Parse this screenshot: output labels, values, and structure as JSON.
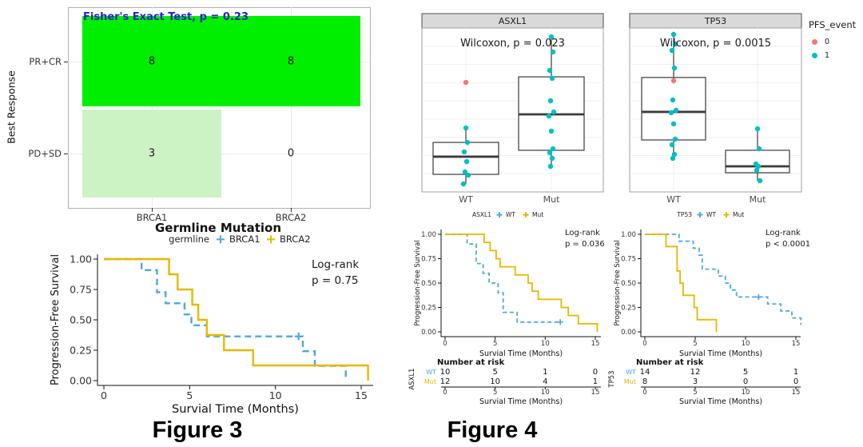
{
  "figure3_caption": "Figure 3",
  "figure4_caption": "Figure 4",
  "pfs_legend": {
    "title": "PFS_event",
    "items": [
      {
        "label": "0",
        "color": "#F8766D"
      },
      {
        "label": "1",
        "color": "#00BFC4"
      }
    ]
  },
  "chart_data": [
    {
      "id": "mosaic",
      "type": "heatmap",
      "title": "Fisher's Exact Test, p = 0.23",
      "title_color": "#2222CC",
      "xlabel": "Germline Mutation",
      "ylabel": "Best Response",
      "x_categories": [
        "BRCA1",
        "BRCA2"
      ],
      "y_categories": [
        "PR+CR",
        "PD+SD"
      ],
      "values": [
        [
          8,
          8
        ],
        [
          3,
          0
        ]
      ],
      "cell_colors": [
        [
          "#00EE00",
          "#00EE00"
        ],
        [
          "#CBF3C3",
          "#FFFFFF"
        ]
      ]
    },
    {
      "id": "km_germline",
      "type": "line",
      "subtype": "kaplan-meier",
      "legend_title": "germline",
      "annotation": [
        "Log-rank",
        "p = 0.75"
      ],
      "xlabel": "Survial Time (Months)",
      "ylabel": "Progression-Free Survival",
      "xticks": [
        0,
        5,
        10,
        15
      ],
      "ytick_labels": [
        "0.00",
        "0.25",
        "0.50",
        "0.75",
        "1.00"
      ],
      "xlim": [
        0,
        15.8
      ],
      "ylim": [
        0,
        1
      ],
      "series": [
        {
          "name": "BRCA1",
          "color": "#4FA7DC",
          "dashed": true,
          "steps": [
            [
              2.2,
              0.909
            ],
            [
              3.1,
              0.727
            ],
            [
              3.6,
              0.636
            ],
            [
              4.7,
              0.545
            ],
            [
              5.1,
              0.455
            ],
            [
              6.0,
              0.364
            ],
            [
              11.6,
              0.242
            ],
            [
              12.3,
              0.121
            ],
            [
              14.1,
              0
            ]
          ],
          "censors": [
            [
              11.35,
              0.364
            ]
          ]
        },
        {
          "name": "BRCA2",
          "color": "#E7B800",
          "dashed": false,
          "steps": [
            [
              3.8,
              0.875
            ],
            [
              4.3,
              0.75
            ],
            [
              5.15,
              0.625
            ],
            [
              5.5,
              0.5
            ],
            [
              6.0,
              0.375
            ],
            [
              7.0,
              0.25
            ],
            [
              8.7,
              0.125
            ],
            [
              15.4,
              0
            ]
          ],
          "censors": []
        }
      ]
    },
    {
      "id": "box_asxl1",
      "type": "boxplot",
      "panel_title": "ASXL1",
      "annotation": "Wilcoxon, p = 0.023",
      "categories": [
        "WT",
        "Mut"
      ],
      "ylim": [
        0,
        100
      ],
      "boxes": [
        {
          "category": "WT",
          "whisker_low": 4.9,
          "q1": 10.7,
          "median": 21.5,
          "q3": 30.2,
          "whisker_high": 39
        },
        {
          "category": "Mut",
          "whisker_low": 15.6,
          "q1": 25.4,
          "median": 47.3,
          "q3": 70.2,
          "whisker_high": 94.6
        }
      ],
      "points": [
        {
          "category": "WT",
          "event": "0",
          "values": [
            66.8
          ]
        },
        {
          "category": "WT",
          "event": "1",
          "values": [
            39,
            30.2,
            24.4,
            18.5,
            12.2,
            10.2,
            4.9
          ]
        },
        {
          "category": "Mut",
          "event": "1",
          "values": [
            94.6,
            85.4,
            74.1,
            69.3,
            55.6,
            48.8,
            46.3,
            37.1,
            26.3,
            23.9,
            20.5,
            15.6
          ]
        }
      ]
    },
    {
      "id": "box_tp53",
      "type": "boxplot",
      "panel_title": "TP53",
      "annotation": "Wilcoxon, p = 0.0015",
      "categories": [
        "WT",
        "Mut"
      ],
      "ylim": [
        0,
        100
      ],
      "boxes": [
        {
          "category": "WT",
          "whisker_low": 20.5,
          "q1": 31.7,
          "median": 48.8,
          "q3": 69.8,
          "whisker_high": 96.1
        },
        {
          "category": "Mut",
          "whisker_low": 6.8,
          "q1": 11.7,
          "median": 15.6,
          "q3": 25.4,
          "whisker_high": 38.5
        }
      ],
      "points": [
        {
          "category": "WT",
          "event": "0",
          "values": [
            67.8
          ]
        },
        {
          "category": "WT",
          "event": "1",
          "values": [
            96.1,
            90.2,
            86.3,
            75.6,
            56.1,
            49.8,
            48.3,
            41.5,
            32.2,
            28.8,
            22.9,
            20.5
          ]
        },
        {
          "category": "Mut",
          "event": "1",
          "values": [
            38.5,
            26.3,
            17.1,
            15.6,
            13.2,
            6.8
          ]
        }
      ]
    },
    {
      "id": "km_asxl1",
      "type": "line",
      "subtype": "kaplan-meier",
      "legend_title": "ASXL1",
      "annotation": [
        "Log-rank",
        "p = 0.036"
      ],
      "xlabel": "Survial Time (Months)",
      "ylabel": "Progression-Free Survival",
      "xticks": [
        0,
        5,
        10,
        15
      ],
      "ytick_labels": [
        "0.00",
        "0.25",
        "0.50",
        "0.75",
        "1.00"
      ],
      "xlim": [
        0,
        15.8
      ],
      "ylim": [
        0,
        1
      ],
      "series": [
        {
          "name": "WT",
          "color": "#4FA7DC",
          "dashed": true,
          "steps": [
            [
              2.2,
              0.9
            ],
            [
              3.1,
              0.7
            ],
            [
              3.8,
              0.6
            ],
            [
              4.4,
              0.5
            ],
            [
              5.3,
              0.4
            ],
            [
              5.8,
              0.2
            ],
            [
              7.2,
              0.1
            ],
            [
              11.6,
              0.1
            ]
          ],
          "censors": [
            [
              11.5,
              0.1
            ]
          ]
        },
        {
          "name": "Mut",
          "color": "#E7B800",
          "dashed": false,
          "steps": [
            [
              3.9,
              0.917
            ],
            [
              4.5,
              0.833
            ],
            [
              5.1,
              0.75
            ],
            [
              5.5,
              0.667
            ],
            [
              7.0,
              0.583
            ],
            [
              8.3,
              0.5
            ],
            [
              8.7,
              0.417
            ],
            [
              9.3,
              0.333
            ],
            [
              11.6,
              0.25
            ],
            [
              12.3,
              0.167
            ],
            [
              13.3,
              0.083
            ],
            [
              15.2,
              0
            ]
          ],
          "censors": []
        }
      ],
      "risk_table": {
        "title": "Number at risk",
        "group_label": "ASXL1",
        "xlabel": "Survial Time (Months)",
        "xticks": [
          0,
          5,
          10,
          15
        ],
        "rows": [
          {
            "name": "WT",
            "color": "#4FA7DC",
            "values": [
              "10",
              "5",
              "1",
              "0"
            ]
          },
          {
            "name": "Mut",
            "color": "#E7B800",
            "values": [
              "12",
              "10",
              "4",
              "1"
            ]
          }
        ]
      }
    },
    {
      "id": "km_tp53",
      "type": "line",
      "subtype": "kaplan-meier",
      "legend_title": "TP53",
      "annotation": [
        "Log-rank",
        "p < 0.0001"
      ],
      "xlabel": "Survial Time (Months)",
      "ylabel": "Progression-Free Survival",
      "xticks": [
        0,
        5,
        10,
        15
      ],
      "ytick_labels": [
        "0.00",
        "0.25",
        "0.50",
        "0.75",
        "1.00"
      ],
      "xlim": [
        0,
        15.8
      ],
      "ylim": [
        0,
        1
      ],
      "series": [
        {
          "name": "WT",
          "color": "#4FA7DC",
          "dashed": true,
          "steps": [
            [
              3.4,
              0.929
            ],
            [
              4.8,
              0.857
            ],
            [
              5.4,
              0.786
            ],
            [
              5.7,
              0.643
            ],
            [
              7.3,
              0.571
            ],
            [
              8.0,
              0.5
            ],
            [
              8.5,
              0.429
            ],
            [
              9.1,
              0.357
            ],
            [
              12.2,
              0.286
            ],
            [
              13.5,
              0.214
            ],
            [
              14.6,
              0.143
            ],
            [
              15.5,
              0.071
            ]
          ],
          "censors": [
            [
              11.3,
              0.357
            ]
          ]
        },
        {
          "name": "Mut",
          "color": "#E7B800",
          "dashed": false,
          "steps": [
            [
              2.1,
              0.875
            ],
            [
              3.2,
              0.625
            ],
            [
              3.5,
              0.5
            ],
            [
              3.8,
              0.375
            ],
            [
              4.9,
              0.25
            ],
            [
              5.2,
              0.125
            ],
            [
              7.1,
              0
            ]
          ],
          "censors": []
        }
      ],
      "risk_table": {
        "title": "Number at risk",
        "group_label": "TP53",
        "xlabel": "Survial Time (Months)",
        "xticks": [
          0,
          5,
          10,
          15
        ],
        "rows": [
          {
            "name": "WT",
            "color": "#4FA7DC",
            "values": [
              "14",
              "12",
              "5",
              "1"
            ]
          },
          {
            "name": "Mut",
            "color": "#E7B800",
            "values": [
              "8",
              "3",
              "0",
              "0"
            ]
          }
        ]
      }
    }
  ]
}
